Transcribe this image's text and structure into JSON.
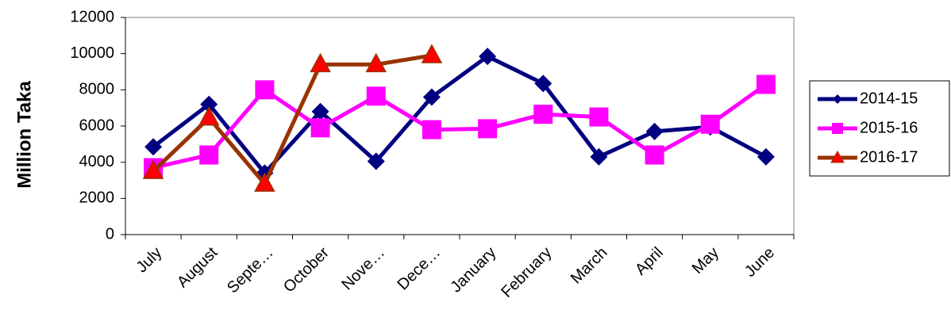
{
  "chart_data": {
    "type": "line",
    "y_label": "Million Taka",
    "categories": [
      "July",
      "August",
      "Septe…",
      "October",
      "Nove…",
      "Dece…",
      "January",
      "February",
      "March",
      "April",
      "May",
      "June"
    ],
    "series": [
      {
        "name": "2014-15",
        "color": "#000080",
        "marker": "diamond",
        "values": [
          4850,
          7200,
          3400,
          6800,
          4050,
          7600,
          9850,
          8350,
          4300,
          5700,
          5950,
          4300
        ]
      },
      {
        "name": "2015-16",
        "color": "#ff00ff",
        "marker": "square",
        "values": [
          3700,
          4400,
          8000,
          5900,
          7650,
          5800,
          5850,
          6650,
          6500,
          4400,
          6100,
          8300
        ]
      },
      {
        "name": "2016-17",
        "color": "#993300",
        "marker_fill": "#ff0000",
        "marker": "triangle",
        "values": [
          3500,
          6450,
          2800,
          9400,
          9400,
          9900,
          null,
          null,
          null,
          null,
          null,
          null
        ]
      }
    ],
    "ylim": [
      0,
      12000
    ],
    "yticks": [
      0,
      2000,
      4000,
      6000,
      8000,
      10000,
      12000
    ],
    "grid": false,
    "legend": "right"
  }
}
